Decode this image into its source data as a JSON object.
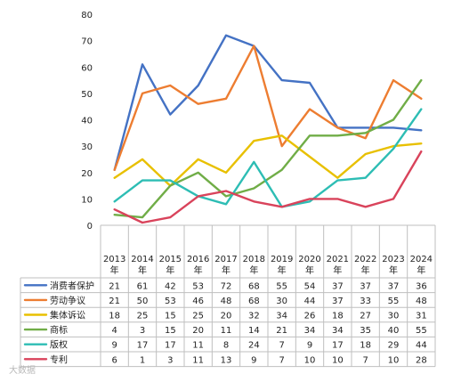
{
  "chart_data": {
    "type": "line",
    "title": "",
    "xlabel": "",
    "ylabel": "",
    "ylim": [
      0,
      80
    ],
    "yticks": [
      0,
      10,
      20,
      30,
      40,
      50,
      60,
      70,
      80
    ],
    "grid": false,
    "legend": "data-table-left",
    "x": [
      {
        "year": "2013",
        "unit": "年"
      },
      {
        "year": "2014",
        "unit": "年"
      },
      {
        "year": "2015",
        "unit": "年"
      },
      {
        "year": "2016",
        "unit": "年"
      },
      {
        "year": "2017",
        "unit": "年"
      },
      {
        "year": "2018",
        "unit": "年"
      },
      {
        "year": "2019",
        "unit": "年"
      },
      {
        "year": "2020",
        "unit": "年"
      },
      {
        "year": "2021",
        "unit": "年"
      },
      {
        "year": "2022",
        "unit": "年"
      },
      {
        "year": "2023",
        "unit": "年"
      },
      {
        "year": "2024",
        "unit": "年"
      }
    ],
    "series": [
      {
        "name": "消费者保护",
        "color": "#4472c4",
        "values": [
          21,
          61,
          42,
          53,
          72,
          68,
          55,
          54,
          37,
          37,
          37,
          36
        ]
      },
      {
        "name": "劳动争议",
        "color": "#ed7d31",
        "values": [
          21,
          50,
          53,
          46,
          48,
          68,
          30,
          44,
          37,
          33,
          55,
          48
        ]
      },
      {
        "name": "集体诉讼",
        "color": "#e8c000",
        "values": [
          18,
          25,
          15,
          25,
          20,
          32,
          34,
          26,
          18,
          27,
          30,
          31
        ]
      },
      {
        "name": "商标",
        "color": "#70ad47",
        "values": [
          4,
          3,
          15,
          20,
          11,
          14,
          21,
          34,
          34,
          35,
          40,
          55
        ]
      },
      {
        "name": "版权",
        "color": "#2dbdb4",
        "values": [
          9,
          17,
          17,
          11,
          8,
          24,
          7,
          9,
          17,
          18,
          29,
          44
        ]
      },
      {
        "name": "专利",
        "color": "#d9435b",
        "values": [
          6,
          1,
          3,
          11,
          13,
          9,
          7,
          10,
          10,
          7,
          10,
          28
        ]
      }
    ]
  },
  "watermark": "大数据"
}
